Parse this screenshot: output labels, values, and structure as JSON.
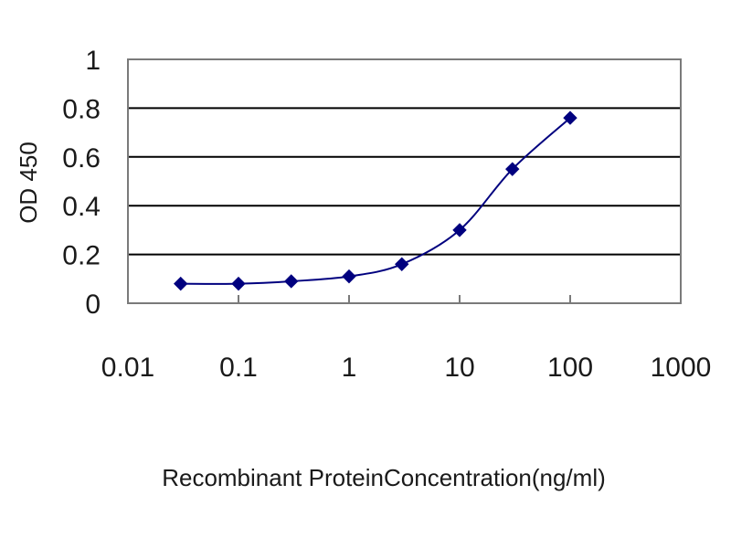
{
  "chart_data": {
    "type": "line",
    "title": "",
    "xlabel": "Recombinant ProteinConcentration(ng/ml)",
    "ylabel": "OD 450",
    "x_scale": "log",
    "xlim": [
      0.01,
      1000
    ],
    "ylim": [
      0,
      1
    ],
    "x_tick_labels": [
      "0.01",
      "0.1",
      "1",
      "10",
      "100",
      "1000"
    ],
    "y_tick_labels": [
      "0",
      "0.2",
      "0.4",
      "0.6",
      "0.8",
      "1"
    ],
    "x_ticks": [
      0.01,
      0.1,
      1,
      10,
      100,
      1000
    ],
    "y_ticks": [
      0,
      0.2,
      0.4,
      0.6,
      0.8,
      1
    ],
    "grid": "horizontal",
    "legend": "none",
    "series": [
      {
        "color": "#00007f",
        "marker": "diamond",
        "x": [
          0.03,
          0.1,
          0.3,
          1,
          3,
          10,
          30,
          100
        ],
        "y": [
          0.08,
          0.08,
          0.09,
          0.11,
          0.16,
          0.3,
          0.55,
          0.76
        ]
      }
    ]
  }
}
